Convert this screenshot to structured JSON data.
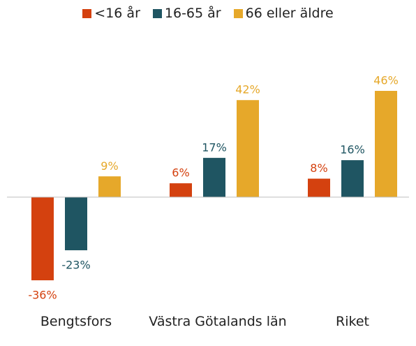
{
  "chart_data": {
    "type": "bar",
    "categories": [
      "Bengtsfors",
      "Västra Götalands län",
      "Riket"
    ],
    "series": [
      {
        "name": "<16 år",
        "color": "#d4410f",
        "values": [
          -36,
          6,
          8
        ],
        "value_labels": [
          "-36%",
          "6%",
          "8%"
        ]
      },
      {
        "name": "16-65 år",
        "color": "#1f5562",
        "values": [
          -23,
          17,
          16
        ],
        "value_labels": [
          "-23%",
          "17%",
          "16%"
        ]
      },
      {
        "name": "66 eller äldre",
        "color": "#e6a82a",
        "values": [
          9,
          42,
          46
        ],
        "value_labels": [
          "9%",
          "42%",
          "46%"
        ]
      }
    ],
    "legend": "top"
  }
}
